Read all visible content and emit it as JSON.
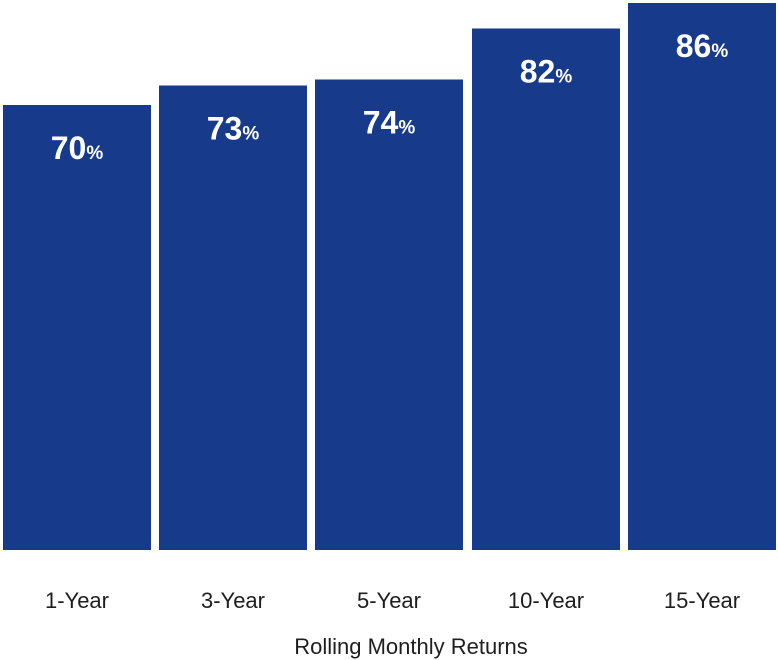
{
  "chart_data": {
    "type": "bar",
    "categories": [
      "1-Year",
      "3-Year",
      "5-Year",
      "10-Year",
      "15-Year"
    ],
    "values": [
      70,
      73,
      74,
      82,
      86
    ],
    "value_labels": [
      "70",
      "73",
      "74",
      "82",
      "86"
    ],
    "value_suffix": "%",
    "title": "",
    "xlabel": "Rolling Monthly Returns",
    "ylabel": "",
    "ylim": [
      0,
      86
    ],
    "grid": false,
    "legend": "none",
    "bar_color": "#173A8A",
    "label_color": "#FFFFFF",
    "text_color": "#1E1E1E"
  }
}
